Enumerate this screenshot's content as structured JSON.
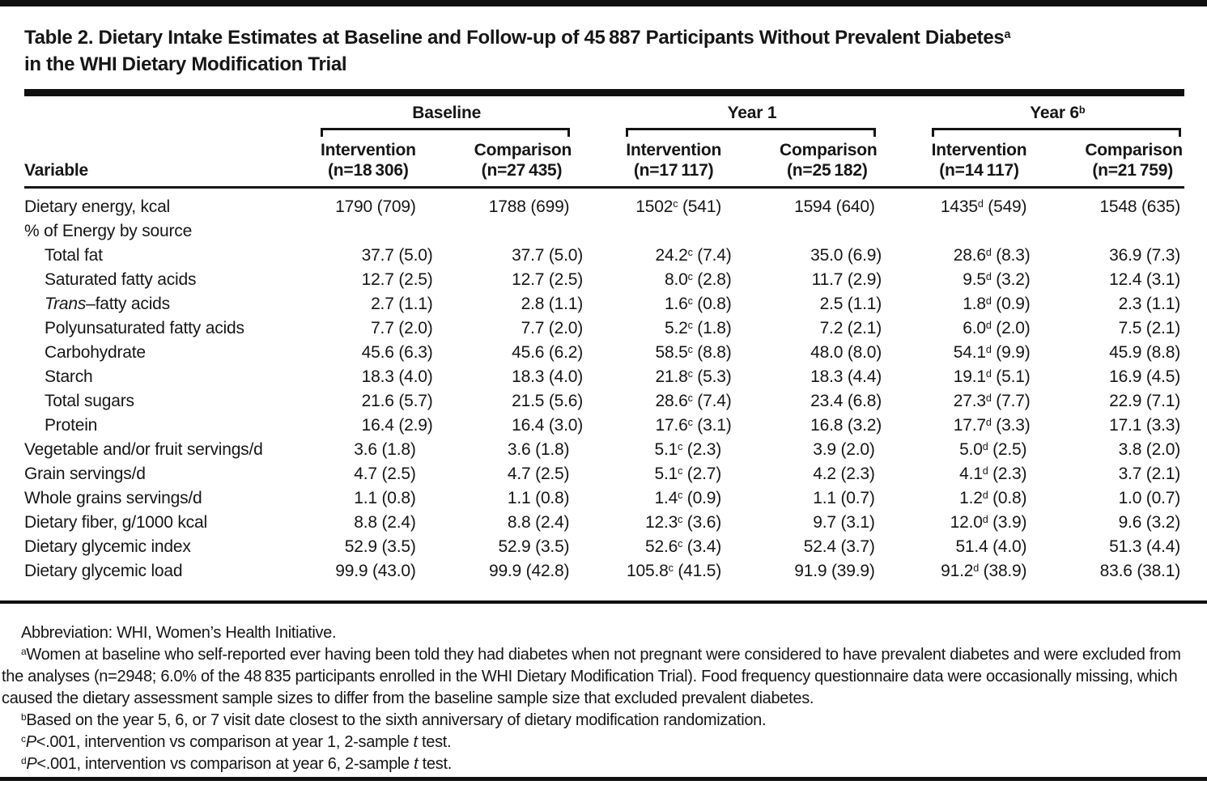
{
  "title": {
    "line1": "Table 2. Dietary Intake Estimates at Baseline and Follow-up of 45 887 Participants Without Prevalent Diabetes^a",
    "line2": "in the WHI Dietary Modification Trial"
  },
  "table": {
    "variable_header": "Variable",
    "groups": [
      {
        "label": "Baseline",
        "columns": [
          {
            "label": "Intervention",
            "n": "(n=18 306)"
          },
          {
            "label": "Comparison",
            "n": "(n=27 435)"
          }
        ]
      },
      {
        "label": "Year 1",
        "columns": [
          {
            "label": "Intervention",
            "n": "(n=17 117)"
          },
          {
            "label": "Comparison",
            "n": "(n=25 182)"
          }
        ]
      },
      {
        "label": "Year 6^b",
        "columns": [
          {
            "label": "Intervention",
            "n": "(n=14 117)"
          },
          {
            "label": "Comparison",
            "n": "(n=21 759)"
          }
        ]
      }
    ],
    "rows": [
      {
        "label": "Dietary energy, kcal",
        "indent": false,
        "values": [
          "1790 (709)",
          "1788 (699)",
          "1502^c (541)",
          "1594 (640)",
          "1435^d (549)",
          "1548 (635)"
        ]
      },
      {
        "label": "% of Energy by source",
        "indent": false,
        "values": [
          "",
          "",
          "",
          "",
          "",
          ""
        ]
      },
      {
        "label": "Total fat",
        "indent": true,
        "values": [
          "37.7 (5.0)",
          "37.7 (5.0)",
          "24.2^c (7.4)",
          "35.0 (6.9)",
          "28.6^d (8.3)",
          "36.9 (7.3)"
        ]
      },
      {
        "label": "Saturated fatty acids",
        "indent": true,
        "values": [
          "12.7 (2.5)",
          "12.7 (2.5)",
          "8.0^c (2.8)",
          "11.7 (2.9)",
          "9.5^d (3.2)",
          "12.4 (3.1)"
        ]
      },
      {
        "label": "*Trans*–fatty acids",
        "indent": true,
        "values": [
          "2.7 (1.1)",
          "2.8 (1.1)",
          "1.6^c (0.8)",
          "2.5 (1.1)",
          "1.8^d (0.9)",
          "2.3 (1.1)"
        ]
      },
      {
        "label": "Polyunsaturated fatty acids",
        "indent": true,
        "values": [
          "7.7 (2.0)",
          "7.7 (2.0)",
          "5.2^c (1.8)",
          "7.2 (2.1)",
          "6.0^d (2.0)",
          "7.5 (2.1)"
        ]
      },
      {
        "label": "Carbohydrate",
        "indent": true,
        "values": [
          "45.6 (6.3)",
          "45.6 (6.2)",
          "58.5^c (8.8)",
          "48.0 (8.0)",
          "54.1^d (9.9)",
          "45.9 (8.8)"
        ]
      },
      {
        "label": "Starch",
        "indent": true,
        "values": [
          "18.3 (4.0)",
          "18.3 (4.0)",
          "21.8^c (5.3)",
          "18.3 (4.4)",
          "19.1^d (5.1)",
          "16.9 (4.5)"
        ]
      },
      {
        "label": "Total sugars",
        "indent": true,
        "values": [
          "21.6 (5.7)",
          "21.5 (5.6)",
          "28.6^c (7.4)",
          "23.4 (6.8)",
          "27.3^d (7.7)",
          "22.9 (7.1)"
        ]
      },
      {
        "label": "Protein",
        "indent": true,
        "values": [
          "16.4 (2.9)",
          "16.4 (3.0)",
          "17.6^c (3.1)",
          "16.8 (3.2)",
          "17.7^d (3.3)",
          "17.1 (3.3)"
        ]
      },
      {
        "label": "Vegetable and/or fruit servings/d",
        "indent": false,
        "values": [
          "3.6 (1.8)",
          "3.6 (1.8)",
          "5.1^c (2.3)",
          "3.9 (2.0)",
          "5.0^d (2.5)",
          "3.8 (2.0)"
        ]
      },
      {
        "label": "Grain servings/d",
        "indent": false,
        "values": [
          "4.7 (2.5)",
          "4.7 (2.5)",
          "5.1^c (2.7)",
          "4.2 (2.3)",
          "4.1^d (2.3)",
          "3.7 (2.1)"
        ]
      },
      {
        "label": "Whole grains servings/d",
        "indent": false,
        "values": [
          "1.1 (0.8)",
          "1.1 (0.8)",
          "1.4^c (0.9)",
          "1.1 (0.7)",
          "1.2^d (0.8)",
          "1.0 (0.7)"
        ]
      },
      {
        "label": "Dietary fiber, g/1000 kcal",
        "indent": false,
        "values": [
          "8.8 (2.4)",
          "8.8 (2.4)",
          "12.3^c (3.6)",
          "9.7 (3.1)",
          "12.0^d (3.9)",
          "9.6 (3.2)"
        ]
      },
      {
        "label": "Dietary glycemic index",
        "indent": false,
        "values": [
          "52.9 (3.5)",
          "52.9 (3.5)",
          "52.6^c (3.4)",
          "52.4 (3.7)",
          "51.4 (4.0)",
          "51.3 (4.4)"
        ]
      },
      {
        "label": "Dietary glycemic load",
        "indent": false,
        "values": [
          "99.9 (43.0)",
          "99.9 (42.8)",
          "105.8^c (41.5)",
          "91.9 (39.9)",
          "91.2^d (38.9)",
          "83.6 (38.1)"
        ]
      }
    ]
  },
  "footnotes": [
    {
      "marker": "",
      "text": "Abbreviation: WHI, Women’s Health Initiative."
    },
    {
      "marker": "a",
      "text": "Women at baseline who self-reported ever having been told they had diabetes when not pregnant were considered to have prevalent diabetes and were excluded from the analyses (n=2948; 6.0% of the 48 835 participants enrolled in the WHI Dietary Modification Trial). Food frequency questionnaire data were occasionally missing, which caused the dietary assessment sample sizes to differ from the baseline sample size that excluded prevalent diabetes."
    },
    {
      "marker": "b",
      "text": "Based on the year 5, 6, or 7 visit date closest to the sixth anniversary of dietary modification randomization."
    },
    {
      "marker": "c",
      "text": "*P*<.001, intervention vs comparison at year 1, 2-sample *t* test."
    },
    {
      "marker": "d",
      "text": "*P*<.001, intervention vs comparison at year 6, 2-sample *t* test."
    }
  ]
}
